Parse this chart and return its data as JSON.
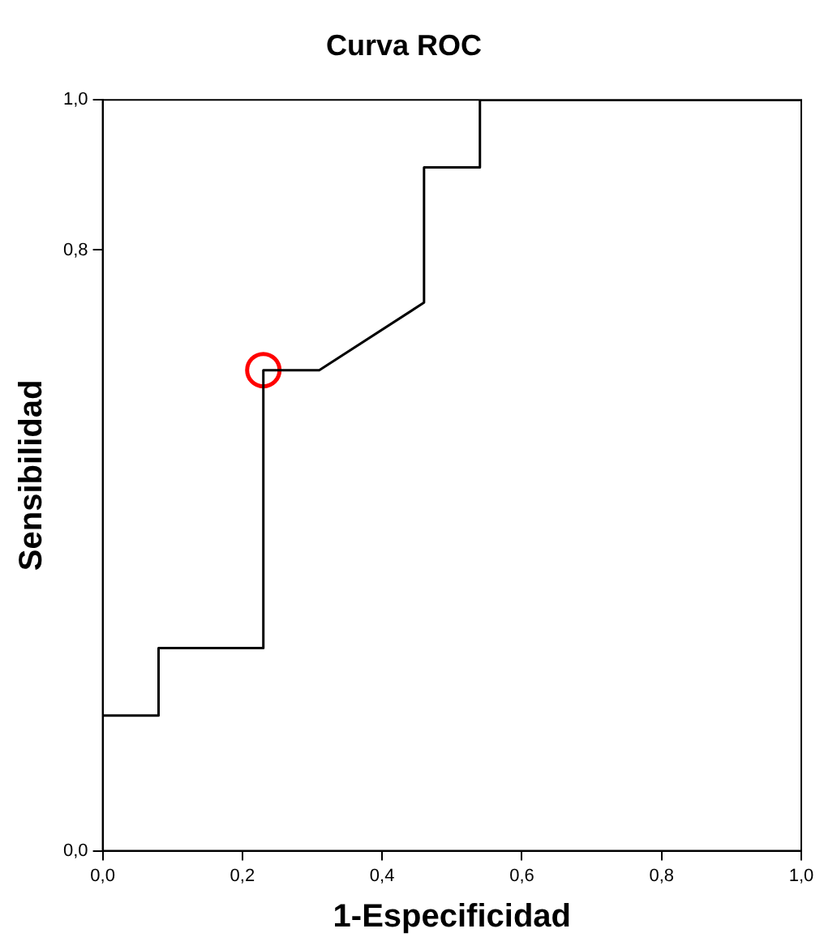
{
  "chart_data": {
    "type": "line",
    "title": "Curva ROC",
    "xlabel": "1-Especificidad",
    "ylabel": "Sensibilidad",
    "xlim": [
      0,
      1
    ],
    "ylim": [
      0,
      1
    ],
    "xticks": [
      {
        "value": 0,
        "label": "0,0"
      },
      {
        "value": 0.2,
        "label": "0,2"
      },
      {
        "value": 0.4,
        "label": "0,4"
      },
      {
        "value": 0.6,
        "label": "0,6"
      },
      {
        "value": 0.8,
        "label": "0,8"
      },
      {
        "value": 1,
        "label": "1,0"
      }
    ],
    "yticks": [
      {
        "value": 0,
        "label": "0,0"
      },
      {
        "value": 0.8,
        "label": "0,8"
      },
      {
        "value": 1,
        "label": "1,0"
      }
    ],
    "grid": false,
    "legend": false,
    "series": [
      {
        "color": "#000000",
        "marker": "none",
        "line_style": "solid",
        "x": [
          0,
          0,
          0.08,
          0.08,
          0.23,
          0.23,
          0.31,
          0.46,
          0.46,
          0.54,
          0.54,
          1
        ],
        "values": [
          0,
          0.18,
          0.18,
          0.27,
          0.27,
          0.64,
          0.64,
          0.73,
          0.91,
          0.91,
          1,
          1
        ]
      },
      {
        "type": "scatter",
        "color": "#ff0000",
        "marker": "circle",
        "x": [
          0.23
        ],
        "values": [
          0.64
        ]
      }
    ]
  }
}
